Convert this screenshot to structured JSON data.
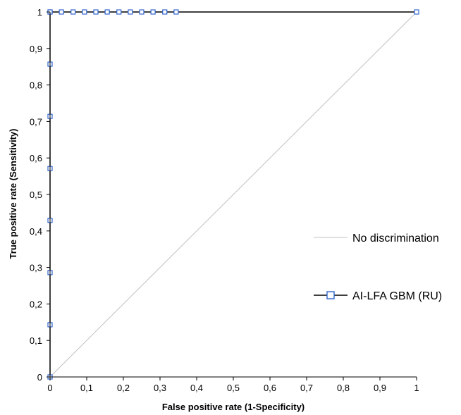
{
  "chart_data": {
    "type": "line",
    "title": "",
    "xlabel": "False positive rate (1-Specificity)",
    "ylabel": "True positive rate (Sensitivity)",
    "xlim": [
      0,
      1
    ],
    "ylim": [
      0,
      1
    ],
    "x_ticks": [
      "0",
      "0,1",
      "0,2",
      "0,3",
      "0,4",
      "0,5",
      "0,6",
      "0,7",
      "0,8",
      "0,9",
      "1"
    ],
    "y_ticks": [
      "0",
      "0,1",
      "0,2",
      "0,3",
      "0,4",
      "0,5",
      "0,6",
      "0,7",
      "0,8",
      "0,9",
      "1"
    ],
    "grid": false,
    "legend_position": "right",
    "series": [
      {
        "name": "No discrimination",
        "color": "#c0c0c0",
        "marker": "none",
        "x": [
          0,
          1
        ],
        "y": [
          0,
          1
        ]
      },
      {
        "name": "AI-LFA GBM (RU)",
        "color": "#000000",
        "marker_color": "#3366cc",
        "marker": "square",
        "x": [
          0,
          0,
          0,
          0,
          0,
          0,
          0,
          0,
          0,
          0.031,
          0.063,
          0.094,
          0.125,
          0.156,
          0.188,
          0.219,
          0.25,
          0.281,
          0.313,
          0.344,
          1
        ],
        "y": [
          0,
          0.143,
          0.286,
          0.429,
          0.571,
          0.714,
          0.857,
          1,
          1,
          1,
          1,
          1,
          1,
          1,
          1,
          1,
          1,
          1,
          1,
          1,
          1
        ]
      }
    ]
  }
}
